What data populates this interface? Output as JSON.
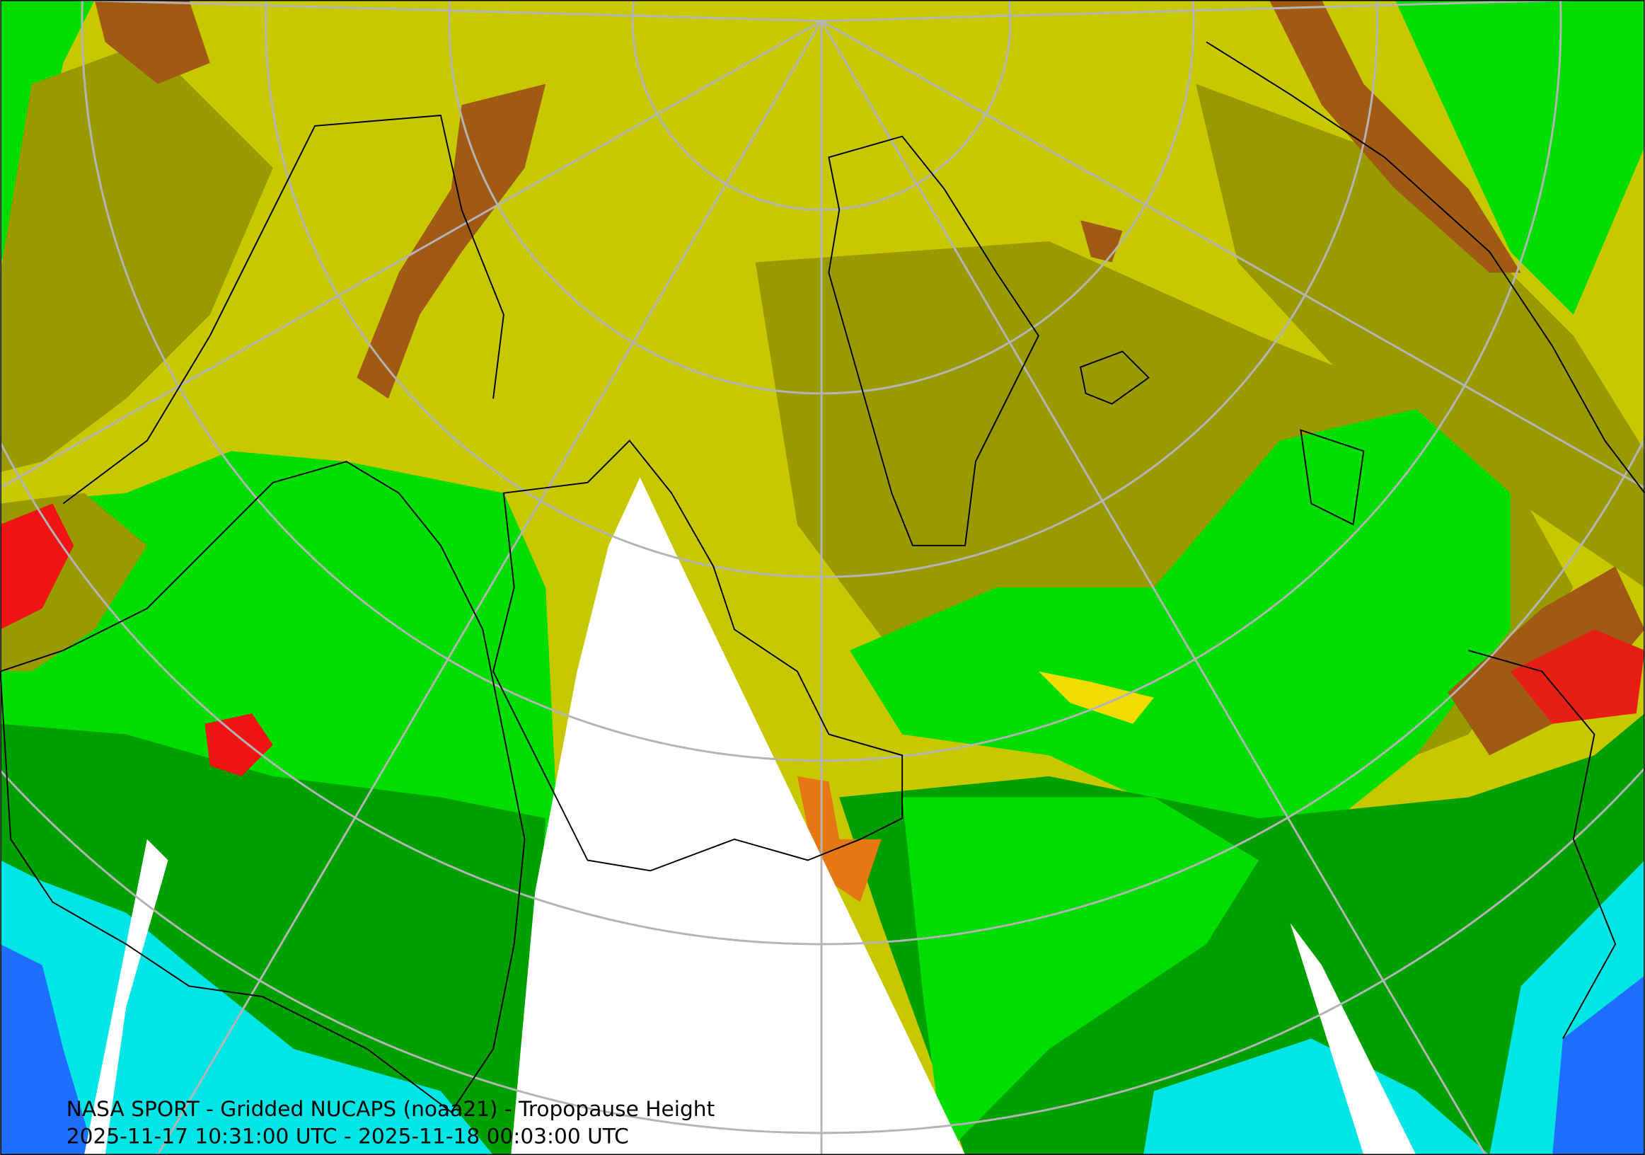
{
  "map": {
    "title": "NASA SPORT - Gridded NUCAPS (noaa21) - Tropopause Height",
    "time_range": "2025-11-17 10:31:00 UTC - 2025-11-18 00:03:00 UTC"
  }
}
